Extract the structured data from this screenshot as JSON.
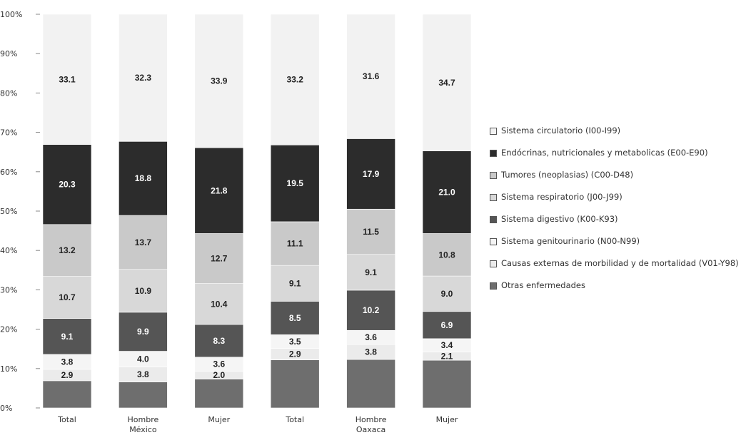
{
  "chart_data": {
    "type": "bar",
    "stacked": true,
    "y_ticks": [
      "0%",
      "10%",
      "20%",
      "30%",
      "40%",
      "50%",
      "60%",
      "70%",
      "80%",
      "90%",
      "100%"
    ],
    "ylim": [
      0,
      100
    ],
    "categories": [
      {
        "label": "Total",
        "group": ""
      },
      {
        "label": "Hombre",
        "group": "México"
      },
      {
        "label": "Mujer",
        "group": ""
      },
      {
        "label": "Total",
        "group": ""
      },
      {
        "label": "Hombre",
        "group": "Oaxaca"
      },
      {
        "label": "Mujer",
        "group": ""
      }
    ],
    "series": [
      {
        "name": "Otras enfermedades",
        "color": "#6e6e6e",
        "text_color": "#ffffff",
        "values": [
          null,
          null,
          null,
          null,
          null,
          null
        ],
        "labels": [
          "",
          "",
          "",
          "",
          "",
          ""
        ]
      },
      {
        "name": "Causas externas de morbilidad y de mortalidad (V01-Y98)",
        "color": "#ebebeb",
        "text_color": "#222222",
        "values": [
          2.9,
          3.8,
          2.0,
          2.9,
          3.8,
          2.1
        ],
        "labels": [
          "2.9",
          "3.8",
          "2.0",
          "2.9",
          "3.8",
          "2.1"
        ]
      },
      {
        "name": "Sistema genitourinario (N00-N99)",
        "color": "#f5f5f5",
        "text_color": "#222222",
        "values": [
          3.8,
          4.0,
          3.6,
          3.5,
          3.6,
          3.4
        ],
        "labels": [
          "3.8",
          "4.0",
          "3.6",
          "3.5",
          "3.6",
          "3.4"
        ]
      },
      {
        "name": "Sistema digestivo (K00-K93)",
        "color": "#555555",
        "text_color": "#ffffff",
        "values": [
          9.1,
          9.9,
          8.3,
          8.5,
          10.2,
          6.9
        ],
        "labels": [
          "9.1",
          "9.9",
          "8.3",
          "8.5",
          "10.2",
          "6.9"
        ]
      },
      {
        "name": "Sistema respiratorio (J00-J99)",
        "color": "#d8d8d8",
        "text_color": "#222222",
        "values": [
          10.7,
          10.9,
          10.4,
          9.1,
          9.1,
          9.0
        ],
        "labels": [
          "10.7",
          "10.9",
          "10.4",
          "9.1",
          "9.1",
          "9.0"
        ]
      },
      {
        "name": "Tumores (neoplasias) (C00-D48)",
        "color": "#c9c9c9",
        "text_color": "#222222",
        "values": [
          13.2,
          13.7,
          12.7,
          11.1,
          11.5,
          10.8
        ],
        "labels": [
          "13.2",
          "13.7",
          "12.7",
          "11.1",
          "11.5",
          "10.8"
        ]
      },
      {
        "name": "Endócrinas, nutricionales y metabolicas (E00-E90)",
        "color": "#2c2c2c",
        "text_color": "#ffffff",
        "values": [
          20.3,
          18.8,
          21.8,
          19.5,
          17.9,
          21.0
        ],
        "labels": [
          "20.3",
          "18.8",
          "21.8",
          "19.5",
          "17.9",
          "21.0"
        ]
      },
      {
        "name": "Sistema circulatorio (I00-I99)",
        "color": "#f2f2f2",
        "text_color": "#222222",
        "values": [
          33.1,
          32.3,
          33.9,
          33.2,
          31.6,
          34.7
        ],
        "labels": [
          "33.1",
          "32.3",
          "33.9",
          "33.2",
          "31.6",
          "34.7"
        ]
      }
    ]
  },
  "legend": [
    {
      "label": "Sistema circulatorio (I00-I99)",
      "color": "#f2f2f2"
    },
    {
      "label": "Endócrinas, nutricionales y metabolicas (E00-E90)",
      "color": "#2c2c2c"
    },
    {
      "label": "Tumores (neoplasias) (C00-D48)",
      "color": "#c9c9c9"
    },
    {
      "label": "Sistema respiratorio (J00-J99)",
      "color": "#d8d8d8"
    },
    {
      "label": "Sistema digestivo (K00-K93)",
      "color": "#555555"
    },
    {
      "label": "Sistema genitourinario (N00-N99)",
      "color": "#f5f5f5"
    },
    {
      "label": "Causas externas de morbilidad y de mortalidad (V01-Y98)",
      "color": "#ebebeb"
    },
    {
      "label": "Otras enfermedades",
      "color": "#6e6e6e"
    }
  ]
}
